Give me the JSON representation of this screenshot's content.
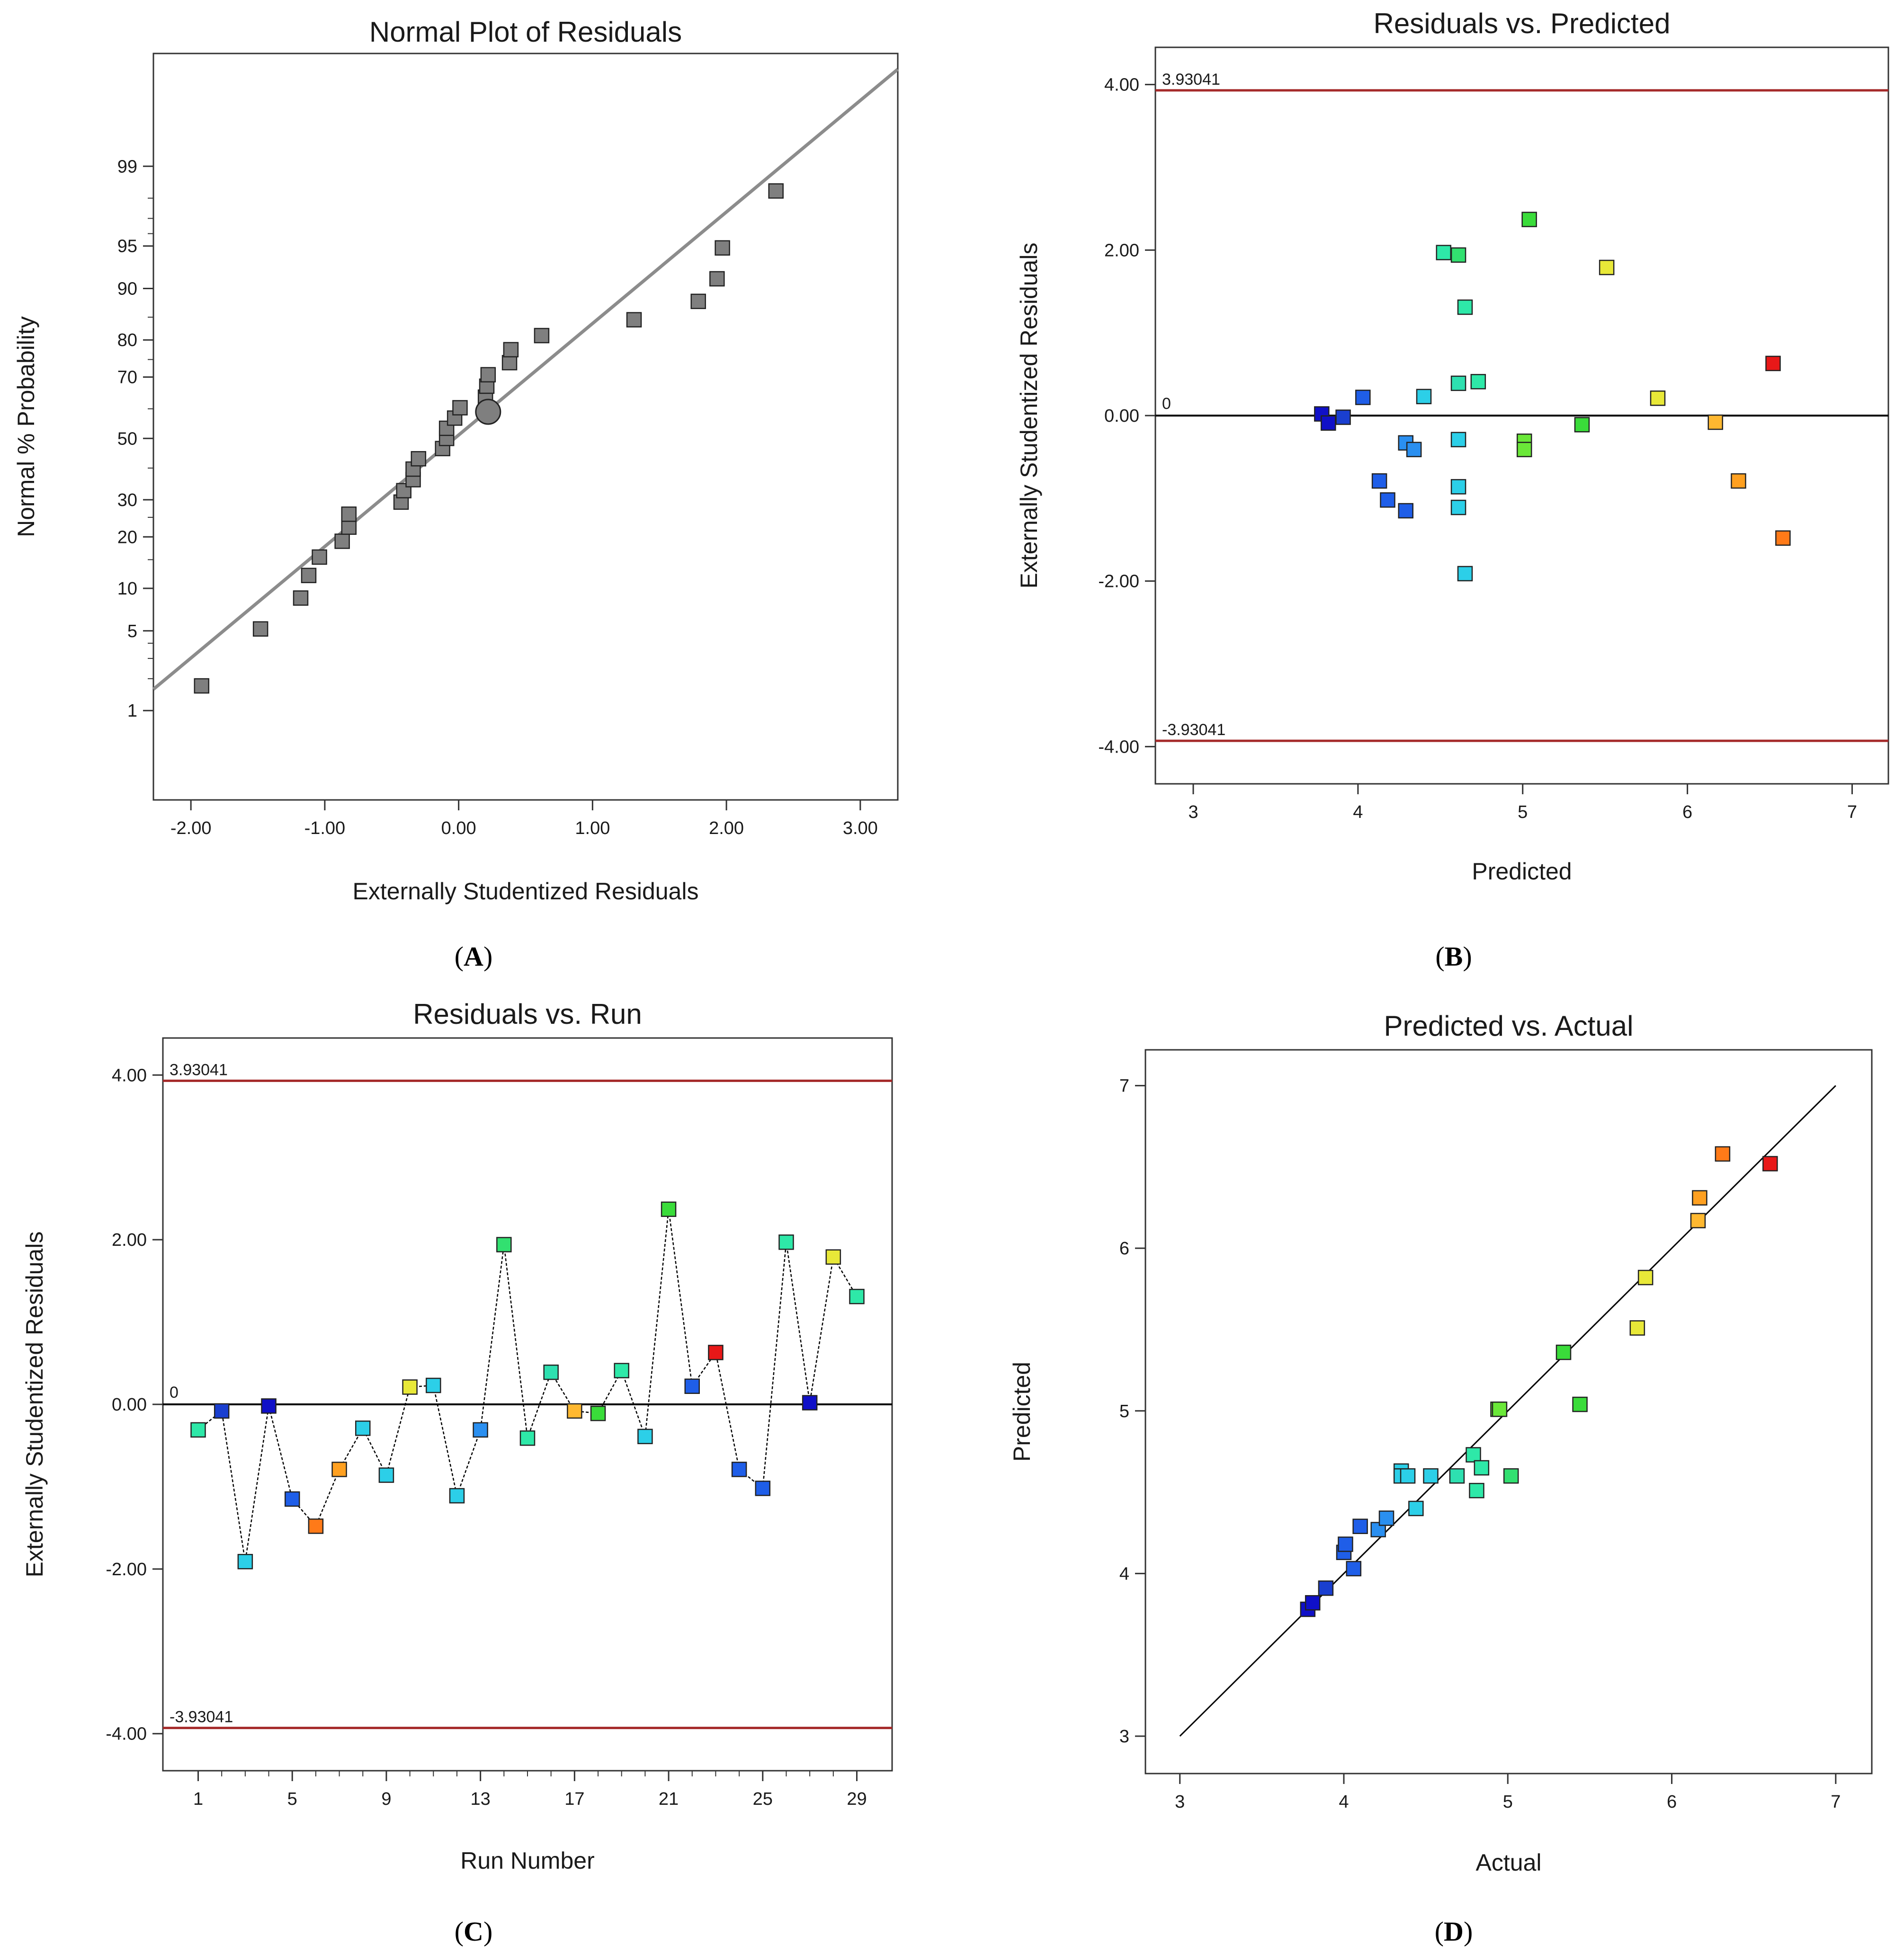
{
  "chart_data": [
    {
      "id": "A",
      "type": "scatter",
      "title": "Normal Plot of Residuals",
      "xlabel": "Externally Studentized Residuals",
      "ylabel": "Normal % Probability",
      "caption_letter": "A",
      "xlim": [
        -2.28,
        3.28
      ],
      "ylim": [
        0.1,
        99.95
      ],
      "y_scale": "normal-probability",
      "x_ticks": [
        {
          "v": -2,
          "label": "-2.00"
        },
        {
          "v": -1,
          "label": "-1.00"
        },
        {
          "v": 0,
          "label": "0.00"
        },
        {
          "v": 1,
          "label": "1.00"
        },
        {
          "v": 2,
          "label": "2.00"
        },
        {
          "v": 3,
          "label": "3.00"
        }
      ],
      "y_ticks": [
        {
          "v": 1,
          "label": "1"
        },
        {
          "v": 5,
          "label": "5"
        },
        {
          "v": 10,
          "label": "10"
        },
        {
          "v": 20,
          "label": "20"
        },
        {
          "v": 30,
          "label": "30"
        },
        {
          "v": 50,
          "label": "50"
        },
        {
          "v": 70,
          "label": "70"
        },
        {
          "v": 80,
          "label": "80"
        },
        {
          "v": 90,
          "label": "90"
        },
        {
          "v": 95,
          "label": "95"
        },
        {
          "v": 99,
          "label": "99"
        }
      ],
      "y_minor_ticks": [
        2,
        3,
        4,
        15,
        25,
        40,
        60,
        75,
        85,
        96,
        97,
        98
      ],
      "reference_line": {
        "x1": -2.28,
        "y1": 1.6,
        "x2": 3.28,
        "y2": 99.92,
        "color": "#8c8c8c"
      },
      "points": [
        {
          "x": -1.92,
          "y": 1.72
        },
        {
          "x": -1.48,
          "y": 5.17
        },
        {
          "x": -1.18,
          "y": 8.62
        },
        {
          "x": -1.12,
          "y": 12.07
        },
        {
          "x": -1.04,
          "y": 15.52
        },
        {
          "x": -0.87,
          "y": 18.97
        },
        {
          "x": -0.82,
          "y": 22.41
        },
        {
          "x": -0.82,
          "y": 25.86
        },
        {
          "x": -0.43,
          "y": 29.31
        },
        {
          "x": -0.41,
          "y": 32.76
        },
        {
          "x": -0.34,
          "y": 36.21
        },
        {
          "x": -0.34,
          "y": 39.66
        },
        {
          "x": -0.3,
          "y": 43.1
        },
        {
          "x": -0.12,
          "y": 46.55
        },
        {
          "x": -0.09,
          "y": 50.0
        },
        {
          "x": -0.09,
          "y": 53.45
        },
        {
          "x": -0.03,
          "y": 56.9
        },
        {
          "x": 0.01,
          "y": 60.34
        },
        {
          "x": 0.2,
          "y": 63.79
        },
        {
          "x": 0.21,
          "y": 67.24
        },
        {
          "x": 0.22,
          "y": 70.69
        },
        {
          "x": 0.38,
          "y": 74.14
        },
        {
          "x": 0.39,
          "y": 77.59
        },
        {
          "x": 0.62,
          "y": 81.03
        },
        {
          "x": 1.31,
          "y": 84.48
        },
        {
          "x": 1.79,
          "y": 87.93
        },
        {
          "x": 1.93,
          "y": 91.38
        },
        {
          "x": 1.97,
          "y": 94.83
        },
        {
          "x": 2.37,
          "y": 98.28
        }
      ],
      "highlight_point": {
        "x": 0.22,
        "y": 59.0
      }
    },
    {
      "id": "B",
      "type": "scatter",
      "title": "Residuals vs. Predicted",
      "xlabel": "Predicted",
      "ylabel": "Externally Studentized Residuals",
      "caption_letter": "B",
      "xlim": [
        2.77,
        7.22
      ],
      "ylim": [
        -4.45,
        4.45
      ],
      "x_ticks": [
        {
          "v": 3,
          "label": "3"
        },
        {
          "v": 4,
          "label": "4"
        },
        {
          "v": 5,
          "label": "5"
        },
        {
          "v": 6,
          "label": "6"
        },
        {
          "v": 7,
          "label": "7"
        }
      ],
      "y_ticks": [
        {
          "v": -4,
          "label": "-4.00"
        },
        {
          "v": -2,
          "label": "-2.00"
        },
        {
          "v": 0,
          "label": "0.00"
        },
        {
          "v": 2,
          "label": "2.00"
        },
        {
          "v": 4,
          "label": "4.00"
        }
      ],
      "limit_upper": 3.93041,
      "limit_upper_label": "3.93041",
      "limit_lower": -3.93041,
      "limit_lower_label": "-3.93041",
      "zero_label": "0",
      "limit_color": "#a52a2a",
      "points": [
        {
          "x": 3.78,
          "y": 0.02,
          "c": "#1010c8"
        },
        {
          "x": 3.82,
          "y": -0.09,
          "c": "#1010c8"
        },
        {
          "x": 3.91,
          "y": -0.02,
          "c": "#1a3fd0"
        },
        {
          "x": 4.03,
          "y": 0.22,
          "c": "#1f5ee8"
        },
        {
          "x": 4.13,
          "y": -0.79,
          "c": "#1f5ee8"
        },
        {
          "x": 4.18,
          "y": -1.02,
          "c": "#1f5ee8"
        },
        {
          "x": 4.29,
          "y": -1.15,
          "c": "#1f5ee8"
        },
        {
          "x": 4.29,
          "y": -0.33,
          "c": "#2a8ff0"
        },
        {
          "x": 4.34,
          "y": -0.41,
          "c": "#2a8ff0"
        },
        {
          "x": 4.4,
          "y": 0.23,
          "c": "#2ccfe8"
        },
        {
          "x": 4.52,
          "y": 1.97,
          "c": "#2ee8a8"
        },
        {
          "x": 4.61,
          "y": 1.94,
          "c": "#32e070"
        },
        {
          "x": 4.61,
          "y": 0.39,
          "c": "#2ee0b0"
        },
        {
          "x": 4.61,
          "y": -0.29,
          "c": "#2ccfe8"
        },
        {
          "x": 4.61,
          "y": -0.86,
          "c": "#2ccfe8"
        },
        {
          "x": 4.61,
          "y": -1.11,
          "c": "#2ccfe8"
        },
        {
          "x": 4.65,
          "y": 1.31,
          "c": "#2ee8a8"
        },
        {
          "x": 4.65,
          "y": -1.91,
          "c": "#2ccfe8"
        },
        {
          "x": 4.73,
          "y": 0.41,
          "c": "#2ee8a8"
        },
        {
          "x": 5.01,
          "y": -0.31,
          "c": "#6ae838"
        },
        {
          "x": 5.01,
          "y": -0.41,
          "c": "#6ae838"
        },
        {
          "x": 5.04,
          "y": 2.37,
          "c": "#3adc3a"
        },
        {
          "x": 5.36,
          "y": -0.11,
          "c": "#3adc3a"
        },
        {
          "x": 5.51,
          "y": 1.79,
          "c": "#e8e838"
        },
        {
          "x": 5.82,
          "y": 0.21,
          "c": "#e8e838"
        },
        {
          "x": 6.17,
          "y": -0.08,
          "c": "#ffb830"
        },
        {
          "x": 6.31,
          "y": -0.79,
          "c": "#ffa020"
        },
        {
          "x": 6.52,
          "y": 0.63,
          "c": "#e81818"
        },
        {
          "x": 6.58,
          "y": -1.48,
          "c": "#ff7a18"
        }
      ]
    },
    {
      "id": "C",
      "type": "line",
      "title": "Residuals vs. Run",
      "xlabel": "Run Number",
      "ylabel": "Externally Studentized Residuals",
      "caption_letter": "C",
      "xlim": [
        -0.5,
        30.5
      ],
      "ylim": [
        -4.45,
        4.45
      ],
      "x_ticks": [
        {
          "v": 1,
          "label": "1"
        },
        {
          "v": 5,
          "label": "5"
        },
        {
          "v": 9,
          "label": "9"
        },
        {
          "v": 13,
          "label": "13"
        },
        {
          "v": 17,
          "label": "17"
        },
        {
          "v": 21,
          "label": "21"
        },
        {
          "v": 25,
          "label": "25"
        },
        {
          "v": 29,
          "label": "29"
        }
      ],
      "y_ticks": [
        {
          "v": -4,
          "label": "-4.00"
        },
        {
          "v": -2,
          "label": "-2.00"
        },
        {
          "v": 0,
          "label": "0.00"
        },
        {
          "v": 2,
          "label": "2.00"
        },
        {
          "v": 4,
          "label": "4.00"
        }
      ],
      "limit_upper": 3.93041,
      "limit_upper_label": "3.93041",
      "limit_lower": -3.93041,
      "limit_lower_label": "-3.93041",
      "zero_label": "0",
      "limit_color": "#a52a2a",
      "points": [
        {
          "x": 1,
          "y": -0.31,
          "c": "#2ee8a8"
        },
        {
          "x": 2,
          "y": -0.08,
          "c": "#1a3fd0"
        },
        {
          "x": 3,
          "y": -1.91,
          "c": "#2ccfe8"
        },
        {
          "x": 4,
          "y": -0.02,
          "c": "#1010c8"
        },
        {
          "x": 5,
          "y": -1.15,
          "c": "#1f5ee8"
        },
        {
          "x": 6,
          "y": -1.48,
          "c": "#ff7a18"
        },
        {
          "x": 7,
          "y": -0.79,
          "c": "#ffa020"
        },
        {
          "x": 8,
          "y": -0.29,
          "c": "#2ccfe8"
        },
        {
          "x": 9,
          "y": -0.86,
          "c": "#2ccfe8"
        },
        {
          "x": 10,
          "y": 0.21,
          "c": "#e8e838"
        },
        {
          "x": 11,
          "y": 0.23,
          "c": "#2ccfe8"
        },
        {
          "x": 12,
          "y": -1.11,
          "c": "#2ccfe8"
        },
        {
          "x": 13,
          "y": -0.31,
          "c": "#2a8ff0"
        },
        {
          "x": 14,
          "y": 1.94,
          "c": "#32e070"
        },
        {
          "x": 15,
          "y": -0.41,
          "c": "#2ee8a8"
        },
        {
          "x": 16,
          "y": 0.39,
          "c": "#2ee0b0"
        },
        {
          "x": 17,
          "y": -0.08,
          "c": "#ffb830"
        },
        {
          "x": 18,
          "y": -0.11,
          "c": "#3adc3a"
        },
        {
          "x": 19,
          "y": 0.41,
          "c": "#2ee8a8"
        },
        {
          "x": 20,
          "y": -0.39,
          "c": "#2ccfe8"
        },
        {
          "x": 21,
          "y": 2.37,
          "c": "#3adc3a"
        },
        {
          "x": 22,
          "y": 0.22,
          "c": "#1f5ee8"
        },
        {
          "x": 23,
          "y": 0.63,
          "c": "#e81818"
        },
        {
          "x": 24,
          "y": -0.79,
          "c": "#1f5ee8"
        },
        {
          "x": 25,
          "y": -1.02,
          "c": "#1f5ee8"
        },
        {
          "x": 26,
          "y": 1.97,
          "c": "#2ee8a8"
        },
        {
          "x": 27,
          "y": 0.02,
          "c": "#1010c8"
        },
        {
          "x": 28,
          "y": 1.79,
          "c": "#e8e838"
        },
        {
          "x": 29,
          "y": 1.31,
          "c": "#2ee8a8"
        }
      ]
    },
    {
      "id": "D",
      "type": "scatter",
      "title": "Predicted vs. Actual",
      "xlabel": "Actual",
      "ylabel": "Predicted",
      "caption_letter": "D",
      "xlim": [
        2.79,
        7.22
      ],
      "ylim": [
        2.77,
        7.22
      ],
      "x_ticks": [
        {
          "v": 3,
          "label": "3"
        },
        {
          "v": 4,
          "label": "4"
        },
        {
          "v": 5,
          "label": "5"
        },
        {
          "v": 6,
          "label": "6"
        },
        {
          "v": 7,
          "label": "7"
        }
      ],
      "y_ticks": [
        {
          "v": 3,
          "label": "3"
        },
        {
          "v": 4,
          "label": "4"
        },
        {
          "v": 5,
          "label": "5"
        },
        {
          "v": 6,
          "label": "6"
        },
        {
          "v": 7,
          "label": "7"
        }
      ],
      "reference_line": {
        "x1": 3,
        "y1": 3,
        "x2": 7,
        "y2": 7,
        "color": "#000000"
      },
      "points": [
        {
          "x": 3.78,
          "y": 3.78,
          "c": "#1010c8"
        },
        {
          "x": 3.81,
          "y": 3.82,
          "c": "#1010c8"
        },
        {
          "x": 3.89,
          "y": 3.91,
          "c": "#1a3fd0"
        },
        {
          "x": 4.0,
          "y": 4.13,
          "c": "#1f5ee8"
        },
        {
          "x": 4.01,
          "y": 4.18,
          "c": "#1f5ee8"
        },
        {
          "x": 4.06,
          "y": 4.03,
          "c": "#1f5ee8"
        },
        {
          "x": 4.1,
          "y": 4.29,
          "c": "#1f5ee8"
        },
        {
          "x": 4.21,
          "y": 4.27,
          "c": "#2a8ff0"
        },
        {
          "x": 4.26,
          "y": 4.34,
          "c": "#2a8ff0"
        },
        {
          "x": 4.35,
          "y": 4.63,
          "c": "#2ccfe8"
        },
        {
          "x": 4.35,
          "y": 4.6,
          "c": "#2ccfe8"
        },
        {
          "x": 4.39,
          "y": 4.6,
          "c": "#2ccfe8"
        },
        {
          "x": 4.44,
          "y": 4.4,
          "c": "#2ccfe8"
        },
        {
          "x": 4.53,
          "y": 4.6,
          "c": "#2ccfe8"
        },
        {
          "x": 4.69,
          "y": 4.6,
          "c": "#2ee0b0"
        },
        {
          "x": 4.79,
          "y": 4.73,
          "c": "#2ee8a8"
        },
        {
          "x": 4.81,
          "y": 4.51,
          "c": "#2ee8a8"
        },
        {
          "x": 4.84,
          "y": 4.65,
          "c": "#2ee8a8"
        },
        {
          "x": 4.94,
          "y": 5.01,
          "c": "#6ae838"
        },
        {
          "x": 4.95,
          "y": 5.01,
          "c": "#6ae838"
        },
        {
          "x": 5.02,
          "y": 4.6,
          "c": "#32e070"
        },
        {
          "x": 5.34,
          "y": 5.36,
          "c": "#3adc3a"
        },
        {
          "x": 5.44,
          "y": 5.04,
          "c": "#3adc3a"
        },
        {
          "x": 5.79,
          "y": 5.51,
          "c": "#e8e838"
        },
        {
          "x": 5.84,
          "y": 5.82,
          "c": "#e8e838"
        },
        {
          "x": 6.16,
          "y": 6.17,
          "c": "#ffb830"
        },
        {
          "x": 6.17,
          "y": 6.31,
          "c": "#ffa020"
        },
        {
          "x": 6.31,
          "y": 6.58,
          "c": "#ff7a18"
        },
        {
          "x": 6.6,
          "y": 6.52,
          "c": "#e81818"
        }
      ]
    }
  ]
}
